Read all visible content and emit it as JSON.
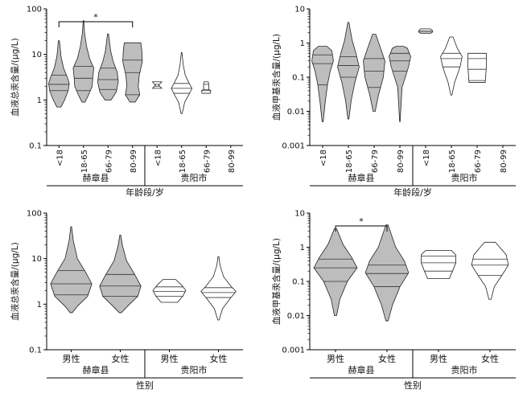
{
  "chart_data": [
    {
      "id": "tl",
      "type": "violin",
      "ylabel": "血液总汞含量/(μg/L)",
      "yscale": "log",
      "ylim": [
        0.1,
        100
      ],
      "yticks": [
        "0.1",
        "1",
        "10",
        "100"
      ],
      "xlabel": "年龄段/岁",
      "categories": [
        "<18",
        "18-65",
        "66-79",
        "80-99",
        "<18",
        "18-65",
        "66-79",
        "80-99"
      ],
      "groups": [
        {
          "name": "赫章县",
          "span": [
            0,
            3
          ]
        },
        {
          "name": "贵阳市",
          "span": [
            4,
            7
          ]
        }
      ],
      "significance": [
        {
          "from": 0,
          "to": 3,
          "label": "*"
        }
      ],
      "violins": [
        {
          "i": 0,
          "fill": "gray",
          "lines": [
            1.6,
            2.2,
            3.5
          ],
          "profile": [
            [
              0.7,
              0.2
            ],
            [
              1.0,
              0.55
            ],
            [
              1.6,
              0.9
            ],
            [
              2.3,
              1
            ],
            [
              3.2,
              0.8
            ],
            [
              5,
              0.45
            ],
            [
              9,
              0.2
            ],
            [
              20,
              0.05
            ]
          ]
        },
        {
          "i": 1,
          "fill": "gray",
          "lines": [
            1.6,
            3.0,
            5.5
          ],
          "profile": [
            [
              0.9,
              0.15
            ],
            [
              1.3,
              0.5
            ],
            [
              2.0,
              0.85
            ],
            [
              3.0,
              0.9
            ],
            [
              5.0,
              1
            ],
            [
              8,
              0.6
            ],
            [
              15,
              0.3
            ],
            [
              30,
              0.1
            ],
            [
              55,
              0.03
            ]
          ]
        },
        {
          "i": 2,
          "fill": "gray",
          "lines": [
            1.7,
            2.8,
            5.0
          ],
          "profile": [
            [
              1.0,
              0.3
            ],
            [
              1.5,
              0.8
            ],
            [
              2.5,
              1
            ],
            [
              4.0,
              0.9
            ],
            [
              7,
              0.5
            ],
            [
              12,
              0.25
            ],
            [
              28,
              0.05
            ]
          ]
        },
        {
          "i": 3,
          "fill": "gray",
          "lines": [
            1.3,
            4.0,
            7.5
          ],
          "profile": [
            [
              0.9,
              0.25
            ],
            [
              1.3,
              0.7
            ],
            [
              2,
              0.55
            ],
            [
              3.5,
              0.65
            ],
            [
              7,
              0.95
            ],
            [
              12,
              0.9
            ],
            [
              18,
              0.8
            ]
          ]
        },
        {
          "i": 4,
          "fill": "white",
          "lines": [
            2.0,
            2.2
          ],
          "profile": [
            [
              1.8,
              0.45
            ],
            [
              2.1,
              0.15
            ],
            [
              2.5,
              0.45
            ]
          ]
        },
        {
          "i": 5,
          "fill": "white",
          "lines": [
            1.4,
            1.8,
            2.3
          ],
          "profile": [
            [
              0.5,
              0.05
            ],
            [
              0.9,
              0.3
            ],
            [
              1.3,
              0.7
            ],
            [
              1.8,
              1
            ],
            [
              2.4,
              0.7
            ],
            [
              3.5,
              0.35
            ],
            [
              6,
              0.15
            ],
            [
              11,
              0.03
            ]
          ]
        },
        {
          "i": 6,
          "fill": "white",
          "lines": [
            1.6,
            1.7,
            2.2
          ],
          "profile": [
            [
              1.4,
              0.4
            ],
            [
              1.6,
              0.45
            ],
            [
              1.7,
              0.25
            ],
            [
              2.2,
              0.25
            ],
            [
              2.5,
              0.2
            ]
          ]
        }
      ]
    },
    {
      "id": "tr",
      "type": "violin",
      "ylabel": "血液甲基汞含量/(μg/L)",
      "yscale": "log",
      "ylim": [
        0.001,
        10
      ],
      "yticks": [
        "0.001",
        "0.01",
        "0.1",
        "1",
        "10"
      ],
      "xlabel": "年龄段/岁",
      "categories": [
        "<18",
        "18-65",
        "66-79",
        "80-99",
        "<18",
        "18-65",
        "66-79",
        "80-99"
      ],
      "groups": [
        {
          "name": "赫章县",
          "span": [
            0,
            3
          ]
        },
        {
          "name": "贵阳市",
          "span": [
            4,
            7
          ]
        }
      ],
      "significance": [],
      "violins": [
        {
          "i": 0,
          "fill": "gray",
          "lines": [
            0.06,
            0.25,
            0.45
          ],
          "profile": [
            [
              0.005,
              0.05
            ],
            [
              0.02,
              0.25
            ],
            [
              0.06,
              0.45
            ],
            [
              0.15,
              0.7
            ],
            [
              0.3,
              1
            ],
            [
              0.6,
              0.85
            ],
            [
              0.8,
              0.4
            ]
          ]
        },
        {
          "i": 1,
          "fill": "gray",
          "lines": [
            0.1,
            0.22,
            0.4
          ],
          "profile": [
            [
              0.006,
              0.05
            ],
            [
              0.02,
              0.25
            ],
            [
              0.07,
              0.6
            ],
            [
              0.2,
              1
            ],
            [
              0.5,
              0.7
            ],
            [
              1.2,
              0.35
            ],
            [
              4,
              0.05
            ]
          ]
        },
        {
          "i": 2,
          "fill": "gray",
          "lines": [
            0.05,
            0.15,
            0.35
          ],
          "profile": [
            [
              0.01,
              0.1
            ],
            [
              0.03,
              0.4
            ],
            [
              0.1,
              0.85
            ],
            [
              0.3,
              1
            ],
            [
              0.7,
              0.6
            ],
            [
              1.8,
              0.15
            ]
          ]
        },
        {
          "i": 3,
          "fill": "gray",
          "lines": [
            0.15,
            0.3,
            0.5
          ],
          "profile": [
            [
              0.005,
              0.02
            ],
            [
              0.05,
              0.2
            ],
            [
              0.2,
              0.8
            ],
            [
              0.4,
              1
            ],
            [
              0.7,
              0.7
            ],
            [
              0.8,
              0.35
            ]
          ]
        },
        {
          "i": 4,
          "fill": "white",
          "lines": [
            2.1,
            2.3
          ],
          "profile": [
            [
              1.9,
              0.45
            ],
            [
              2.1,
              0.65
            ],
            [
              2.3,
              0.65
            ],
            [
              2.6,
              0.45
            ]
          ]
        },
        {
          "i": 5,
          "fill": "white",
          "lines": [
            0.2,
            0.35,
            0.5
          ],
          "profile": [
            [
              0.03,
              0.05
            ],
            [
              0.07,
              0.3
            ],
            [
              0.2,
              0.8
            ],
            [
              0.4,
              1
            ],
            [
              0.7,
              0.55
            ],
            [
              1.5,
              0.15
            ]
          ]
        },
        {
          "i": 6,
          "fill": "white",
          "lines": [
            0.08,
            0.17,
            0.35
          ],
          "profile": [
            [
              0.07,
              0.75
            ],
            [
              0.2,
              0.85
            ],
            [
              0.5,
              0.85
            ]
          ]
        }
      ]
    },
    {
      "id": "bl",
      "type": "violin",
      "ylabel": "血液总汞含量/(μg/L)",
      "yscale": "log",
      "ylim": [
        0.1,
        100
      ],
      "yticks": [
        "0.1",
        "1",
        "10",
        "100"
      ],
      "xlabel": "性别",
      "categories": [
        "男性",
        "女性",
        "男性",
        "女性"
      ],
      "groups": [
        {
          "name": "赫章县",
          "span": [
            0,
            1
          ]
        },
        {
          "name": "贵阳市",
          "span": [
            2,
            3
          ]
        }
      ],
      "significance": [],
      "violins": [
        {
          "i": 0,
          "fill": "gray",
          "lines": [
            1.6,
            2.8,
            5.5
          ],
          "profile": [
            [
              0.65,
              0.05
            ],
            [
              0.9,
              0.3
            ],
            [
              1.5,
              0.8
            ],
            [
              2.8,
              1
            ],
            [
              5,
              0.7
            ],
            [
              10,
              0.3
            ],
            [
              25,
              0.1
            ],
            [
              50,
              0.02
            ]
          ]
        },
        {
          "i": 1,
          "fill": "gray",
          "lines": [
            1.5,
            2.5,
            4.5
          ],
          "profile": [
            [
              0.65,
              0.05
            ],
            [
              0.9,
              0.35
            ],
            [
              1.5,
              0.85
            ],
            [
              2.5,
              1
            ],
            [
              4.5,
              0.7
            ],
            [
              9,
              0.3
            ],
            [
              20,
              0.1
            ],
            [
              33,
              0.02
            ]
          ]
        },
        {
          "i": 2,
          "fill": "white",
          "lines": [
            1.5,
            1.9,
            2.4
          ],
          "profile": [
            [
              1.1,
              0.4
            ],
            [
              1.5,
              0.65
            ],
            [
              2.0,
              0.8
            ],
            [
              2.6,
              0.6
            ],
            [
              3.5,
              0.3
            ]
          ]
        },
        {
          "i": 3,
          "fill": "white",
          "lines": [
            1.4,
            1.8,
            2.3
          ],
          "profile": [
            [
              0.45,
              0.03
            ],
            [
              0.8,
              0.2
            ],
            [
              1.3,
              0.55
            ],
            [
              1.9,
              0.85
            ],
            [
              2.5,
              0.6
            ],
            [
              4,
              0.25
            ],
            [
              7,
              0.08
            ],
            [
              11,
              0.02
            ]
          ]
        }
      ]
    },
    {
      "id": "br",
      "type": "violin",
      "ylabel": "血液甲基汞含量/(μg/L)",
      "yscale": "log",
      "ylim": [
        0.001,
        10
      ],
      "yticks": [
        "0.001",
        "0.01",
        "0.1",
        "1",
        "10"
      ],
      "xlabel": "性别",
      "categories": [
        "男性",
        "女性",
        "男性",
        "女性"
      ],
      "groups": [
        {
          "name": "赫章县",
          "span": [
            0,
            1
          ]
        },
        {
          "name": "贵阳市",
          "span": [
            2,
            3
          ]
        }
      ],
      "significance": [
        {
          "from": 0,
          "to": 1,
          "label": "*"
        }
      ],
      "violins": [
        {
          "i": 0,
          "fill": "gray",
          "lines": [
            0.1,
            0.25,
            0.45
          ],
          "profile": [
            [
              0.01,
              0.05
            ],
            [
              0.03,
              0.2
            ],
            [
              0.1,
              0.55
            ],
            [
              0.25,
              1
            ],
            [
              0.5,
              0.75
            ],
            [
              1.2,
              0.35
            ],
            [
              3.5,
              0.05
            ]
          ]
        },
        {
          "i": 1,
          "fill": "gray",
          "lines": [
            0.07,
            0.17,
            0.3
          ],
          "profile": [
            [
              0.007,
              0.05
            ],
            [
              0.02,
              0.25
            ],
            [
              0.07,
              0.6
            ],
            [
              0.18,
              1
            ],
            [
              0.4,
              0.8
            ],
            [
              1.0,
              0.4
            ],
            [
              4.5,
              0.05
            ]
          ]
        },
        {
          "i": 2,
          "fill": "white",
          "lines": [
            0.2,
            0.35,
            0.55
          ],
          "profile": [
            [
              0.12,
              0.5
            ],
            [
              0.2,
              0.65
            ],
            [
              0.35,
              0.8
            ],
            [
              0.6,
              0.8
            ],
            [
              0.8,
              0.6
            ]
          ]
        },
        {
          "i": 3,
          "fill": "white",
          "lines": [
            0.15,
            0.3,
            0.45
          ],
          "profile": [
            [
              0.03,
              0.05
            ],
            [
              0.07,
              0.2
            ],
            [
              0.15,
              0.55
            ],
            [
              0.3,
              0.85
            ],
            [
              0.6,
              0.75
            ],
            [
              1.4,
              0.25
            ]
          ]
        }
      ]
    }
  ]
}
